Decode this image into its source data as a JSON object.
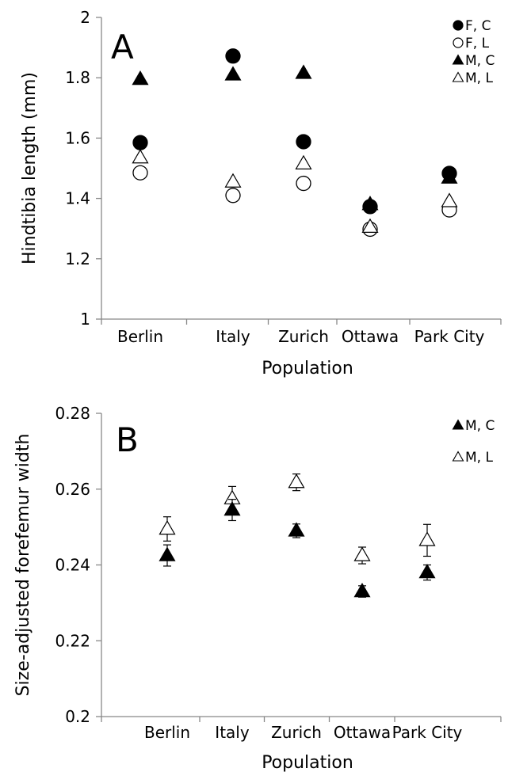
{
  "chart_data": [
    {
      "type": "scatter",
      "panel_label": "A",
      "title": "",
      "xlabel": "Population",
      "ylabel": "Hindtibia length (mm)",
      "categories": [
        "Berlin",
        "Italy",
        "Zurich",
        "Ottawa",
        "Park City"
      ],
      "ylim": [
        1,
        2
      ],
      "yticks": [
        1,
        1.2,
        1.4,
        1.6,
        1.8,
        2
      ],
      "ytick_labels": [
        "1",
        "1.2",
        "1.4",
        "1.6",
        "1.8",
        "2"
      ],
      "grid": false,
      "legend_position": "top-right",
      "series": [
        {
          "name": "F, C",
          "marker": "circle-filled",
          "values": [
            1.585,
            1.872,
            1.588,
            1.373,
            1.483
          ]
        },
        {
          "name": "F, L",
          "marker": "circle-open",
          "values": [
            1.485,
            1.41,
            1.45,
            1.298,
            1.362
          ]
        },
        {
          "name": "M, C",
          "marker": "triangle-filled",
          "values": [
            1.795,
            1.81,
            1.815,
            1.38,
            1.468
          ]
        },
        {
          "name": "M, L",
          "marker": "triangle-open",
          "values": [
            1.535,
            1.455,
            1.515,
            1.305,
            1.39
          ]
        }
      ]
    },
    {
      "type": "scatter",
      "panel_label": "B",
      "title": "",
      "xlabel": "Population",
      "ylabel": "Size-adjusted forefemur width",
      "categories": [
        "Berlin",
        "Italy",
        "Zurich",
        "Ottawa",
        "Park City"
      ],
      "ylim": [
        0.2,
        0.28
      ],
      "yticks": [
        0.2,
        0.22,
        0.24,
        0.26,
        0.28
      ],
      "ytick_labels": [
        "0.2",
        "0.22",
        "0.24",
        "0.26",
        "0.28"
      ],
      "grid": false,
      "legend_position": "top-right",
      "series": [
        {
          "name": "M, C",
          "marker": "triangle-filled",
          "values": [
            0.2425,
            0.2545,
            0.249,
            0.233,
            0.238
          ],
          "error": [
            0.0028,
            0.0028,
            0.0018,
            0.0015,
            0.002
          ]
        },
        {
          "name": "M, L",
          "marker": "triangle-open",
          "values": [
            0.2495,
            0.2575,
            0.2618,
            0.2425,
            0.2465
          ],
          "error": [
            0.0032,
            0.0032,
            0.0022,
            0.0022,
            0.0042
          ]
        }
      ]
    }
  ]
}
